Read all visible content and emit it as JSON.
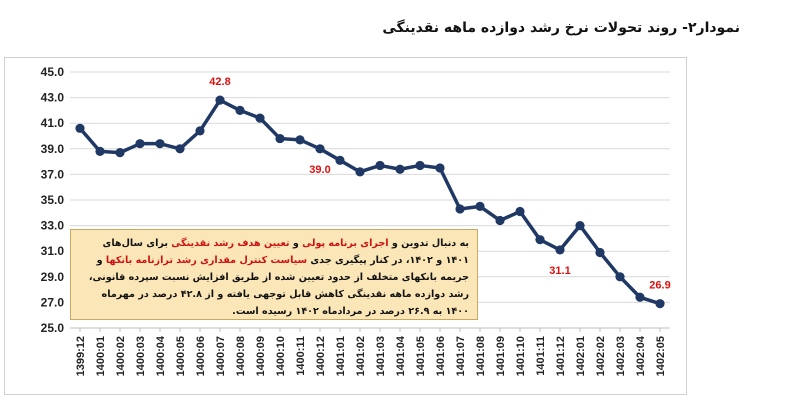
{
  "title": "نمودار۲- روند تحولات نرخ رشد دوازده ماهه نقدینگی",
  "note": {
    "segments": [
      {
        "text": "به دنبال تدوین و ",
        "style": "b"
      },
      {
        "text": "اجرای برنامه پولی",
        "style": "hl"
      },
      {
        "text": " و ",
        "style": "b"
      },
      {
        "text": "تعیین هدف رشد نقدینگی",
        "style": "hl"
      },
      {
        "text": " برای سال‌های ۱۴۰۱ و ۱۴۰۲، در کنار پیگیری جدی ",
        "style": "b"
      },
      {
        "text": "سیاست کنترل مقداری رشد ترازنامه بانکها",
        "style": "hl"
      },
      {
        "text": " و جریمه بانکهای متخلف از حدود تعیین شده از طریق افزایش نسبت سپرده قانونی، رشد دوازده ماهه نقدینگی کاهش قابل توجهی یافته و از ۴۲.۸ درصد در مهرماه ۱۴۰۰ به ۲۶.۹ درصد در مردادماه ۱۴۰۲ رسیده است.",
        "style": "b"
      }
    ]
  },
  "colors": {
    "line": "#1f3864",
    "label": "#e01010",
    "note_bg": "#fbe6b8"
  },
  "chart_data": {
    "type": "line",
    "title": "نمودار۲- روند تحولات نرخ رشد دوازده ماهه نقدینگی",
    "categories": [
      "1399:12",
      "1400:01",
      "1400:02",
      "1400:03",
      "1400:04",
      "1400:05",
      "1400:06",
      "1400:07",
      "1400:08",
      "1400:09",
      "1400:10",
      "1400:11",
      "1400:12",
      "1401:01",
      "1401:02",
      "1401:03",
      "1401:04",
      "1401:05",
      "1401:06",
      "1401:07",
      "1401:08",
      "1401:09",
      "1401:10",
      "1401:11",
      "1401:12",
      "1402:01",
      "1402:02",
      "1402:03",
      "1402:04",
      "1402:05"
    ],
    "values": [
      40.6,
      38.8,
      38.7,
      39.4,
      39.4,
      39.0,
      40.4,
      42.8,
      42.0,
      41.4,
      39.8,
      39.7,
      39.0,
      38.1,
      37.2,
      37.7,
      37.4,
      37.7,
      37.5,
      34.3,
      34.5,
      33.4,
      34.1,
      31.9,
      31.1,
      33.0,
      30.9,
      29.0,
      27.4,
      26.9
    ],
    "yticks": [
      "25.0",
      "27.0",
      "29.0",
      "31.0",
      "33.0",
      "35.0",
      "37.0",
      "39.0",
      "41.0",
      "43.0",
      "45.0"
    ],
    "ylim": [
      25,
      45
    ],
    "xlabel": "",
    "ylabel": "",
    "grid": "horizontal",
    "annotations": [
      {
        "category": "1400:07",
        "text": "42.8",
        "position": "above"
      },
      {
        "category": "1400:12",
        "text": "39.0",
        "position": "below"
      },
      {
        "category": "1401:12",
        "text": "31.1",
        "position": "below"
      },
      {
        "category": "1402:05",
        "text": "26.9",
        "position": "above"
      }
    ]
  }
}
